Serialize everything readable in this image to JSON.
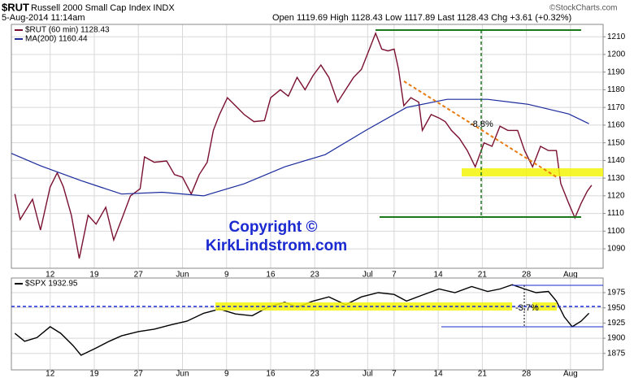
{
  "chart_data": [
    {
      "type": "line",
      "title": "$RUT",
      "subtitle": "Russell 2000 Small Cap Index INDX",
      "date": "5-Aug-2014 11:14am",
      "quote": "Open 1119.69 High 1128.43 Low 1117.89 Last 1128.43 Chg +3.61 (+0.32%)",
      "source": "©StockCharts.com",
      "annotations": [
        "-8.8%",
        "Copyright ©",
        "KirkLindstrom.com"
      ],
      "xlim": [
        -0.4,
        66.7
      ],
      "xticks": [
        {
          "value": 4,
          "label": "12"
        },
        {
          "value": 9,
          "label": "19"
        },
        {
          "value": 14,
          "label": "27"
        },
        {
          "value": 19,
          "label": "Jun"
        },
        {
          "value": 24,
          "label": "9"
        },
        {
          "value": 29,
          "label": "16"
        },
        {
          "value": 34,
          "label": "23"
        },
        {
          "value": 40,
          "label": "Jul"
        },
        {
          "value": 43,
          "label": "7"
        },
        {
          "value": 48,
          "label": "14"
        },
        {
          "value": 53,
          "label": "21"
        },
        {
          "value": 58,
          "label": "28"
        },
        {
          "value": 63,
          "label": "Aug"
        }
      ],
      "ylim": [
        1079,
        1217
      ],
      "yticks": [
        1090,
        1100,
        1110,
        1120,
        1130,
        1140,
        1150,
        1160,
        1170,
        1180,
        1190,
        1200,
        1210
      ],
      "grid": true,
      "series": [
        {
          "name": "$RUT (60 min) 1128.43",
          "color": "#7a1030",
          "x": [
            0.0,
            0.6,
            2.0,
            2.9,
            4.0,
            4.8,
            5.5,
            6.4,
            7.3,
            8.3,
            9.2,
            10.3,
            11.2,
            12.1,
            13.1,
            14.2,
            14.7,
            15.8,
            17.2,
            18.1,
            19.0,
            20.0,
            20.9,
            21.8,
            22.5,
            23.2,
            24.1,
            25.0,
            26.0,
            27.1,
            28.3,
            29.0,
            30.1,
            31.0,
            32.0,
            32.9,
            33.8,
            34.7,
            35.6,
            36.6,
            37.5,
            38.4,
            39.3,
            40.2,
            40.9,
            41.6,
            42.3,
            43.0,
            43.5,
            44.1,
            44.9,
            45.8,
            46.2,
            47.2,
            48.1,
            48.8,
            49.5,
            50.4,
            51.3,
            52.2,
            53.2,
            54.1,
            55.0,
            55.9,
            57.0,
            57.8,
            58.7,
            59.6,
            60.5,
            61.4,
            61.9,
            62.8,
            63.5,
            64.2,
            64.9,
            65.4
          ],
          "values": [
            1121,
            1106.6,
            1118,
            1100.6,
            1125,
            1133,
            1125,
            1109,
            1084.5,
            1109,
            1104,
            1113.5,
            1095,
            1106.6,
            1120,
            1124,
            1142,
            1139,
            1139.7,
            1132,
            1130.5,
            1121,
            1132,
            1139,
            1157,
            1166,
            1175.5,
            1171,
            1166,
            1162,
            1162.6,
            1175.5,
            1180,
            1176.4,
            1187,
            1180,
            1188,
            1194,
            1187,
            1173,
            1180,
            1187,
            1191.6,
            1203,
            1212,
            1203,
            1202,
            1203,
            1191.6,
            1171,
            1175.5,
            1173,
            1157,
            1166,
            1164,
            1162,
            1157,
            1152.5,
            1145.6,
            1136.4,
            1150,
            1148,
            1159.4,
            1157,
            1157,
            1145.6,
            1136.4,
            1148,
            1145.6,
            1145.6,
            1127,
            1115.7,
            1107.5,
            1115.7,
            1122.6,
            1126
          ]
        },
        {
          "name": "MA(200) 1160.44",
          "color": "#1a2a9c",
          "x": [
            -0.4,
            2.9,
            7.5,
            12.1,
            16.7,
            21.4,
            26.0,
            30.6,
            35.2,
            39.8,
            44.4,
            49.0,
            53.6,
            58.2,
            62.8,
            65.1
          ],
          "values": [
            1144,
            1137,
            1128.6,
            1121,
            1122,
            1120,
            1126.8,
            1136.4,
            1143.3,
            1157,
            1170,
            1174.6,
            1174.6,
            1171.8,
            1166.3,
            1160.8
          ]
        }
      ]
    },
    {
      "type": "line",
      "annotations": [
        "-3.7%"
      ],
      "xlim": [
        -0.4,
        66.7
      ],
      "xticks": [
        {
          "value": 4,
          "label": "12"
        },
        {
          "value": 9,
          "label": "19"
        },
        {
          "value": 14,
          "label": "27"
        },
        {
          "value": 19,
          "label": "Jun"
        },
        {
          "value": 24,
          "label": "9"
        },
        {
          "value": 29,
          "label": "16"
        },
        {
          "value": 34,
          "label": "23"
        },
        {
          "value": 40,
          "label": "Jul"
        },
        {
          "value": 43,
          "label": "7"
        },
        {
          "value": 48,
          "label": "14"
        },
        {
          "value": 53,
          "label": "21"
        },
        {
          "value": 58,
          "label": "28"
        },
        {
          "value": 63,
          "label": "Aug"
        }
      ],
      "ylim": [
        1848,
        1999
      ],
      "yticks": [
        1875,
        1900,
        1925,
        1950,
        1975
      ],
      "grid": true,
      "series": [
        {
          "name": "$SPX 1932.95",
          "color": "#000000",
          "x": [
            0.0,
            1.1,
            2.5,
            4.0,
            5.2,
            6.6,
            7.5,
            9.2,
            10.7,
            12.1,
            14.0,
            15.8,
            17.7,
            19.5,
            21.4,
            23.2,
            25.0,
            26.9,
            28.7,
            30.6,
            32.0,
            33.8,
            35.6,
            37.5,
            39.3,
            41.2,
            43.0,
            44.4,
            46.2,
            48.1,
            49.9,
            51.8,
            53.6,
            55.0,
            56.4,
            57.8,
            59.1,
            60.5,
            61.4,
            62.3,
            63.2,
            64.2,
            65.1
          ],
          "values": [
            1908,
            1895,
            1901,
            1919,
            1908,
            1888,
            1872,
            1884,
            1895,
            1904,
            1911,
            1915,
            1922,
            1928,
            1941,
            1948,
            1940,
            1937,
            1951,
            1959,
            1951,
            1961,
            1968,
            1955,
            1968,
            1975,
            1972,
            1961,
            1971,
            1981,
            1975,
            1985,
            1977,
            1981,
            1988,
            1981,
            1975,
            1977,
            1961,
            1935,
            1919,
            1928,
            1941
          ]
        }
      ]
    }
  ]
}
